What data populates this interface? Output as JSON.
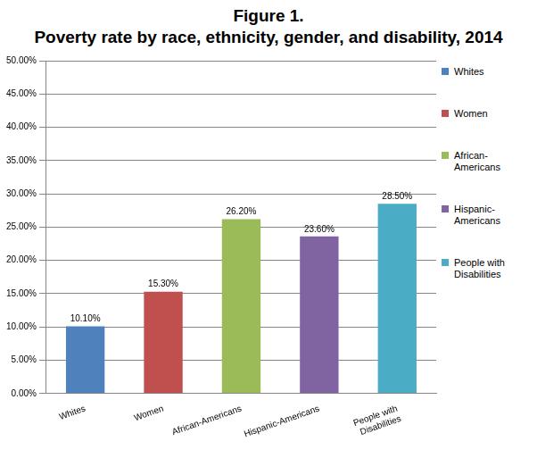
{
  "chart_data": {
    "type": "bar",
    "title": [
      "Figure 1.",
      "Poverty rate by race, ethnicity, gender, and disability, 2014"
    ],
    "categories": [
      "Whites",
      "Women",
      "African-Americans",
      "Hispanic-Americans",
      "People with Disabilities"
    ],
    "values": [
      10.1,
      15.3,
      26.2,
      23.6,
      28.5
    ],
    "value_labels": [
      "10.10%",
      "15.30%",
      "26.20%",
      "23.60%",
      "28.50%"
    ],
    "colors": [
      "#4f81bd",
      "#c0504d",
      "#9bbb59",
      "#8064a2",
      "#4bacc6"
    ],
    "ylim": [
      0,
      50
    ],
    "yticks": [
      {
        "value": 0,
        "label": "0.00%"
      },
      {
        "value": 5,
        "label": "5.00%"
      },
      {
        "value": 10,
        "label": "10.00%"
      },
      {
        "value": 15,
        "label": "15.00%"
      },
      {
        "value": 20,
        "label": "20.00%"
      },
      {
        "value": 25,
        "label": "25.00%"
      },
      {
        "value": 30,
        "label": "30.00%"
      },
      {
        "value": 35,
        "label": "35.00%"
      },
      {
        "value": 40,
        "label": "40.00%"
      },
      {
        "value": 45,
        "label": "45.00%"
      },
      {
        "value": 50,
        "label": "50.00%"
      }
    ],
    "grid": true,
    "legend": "right",
    "data_labels": true
  }
}
